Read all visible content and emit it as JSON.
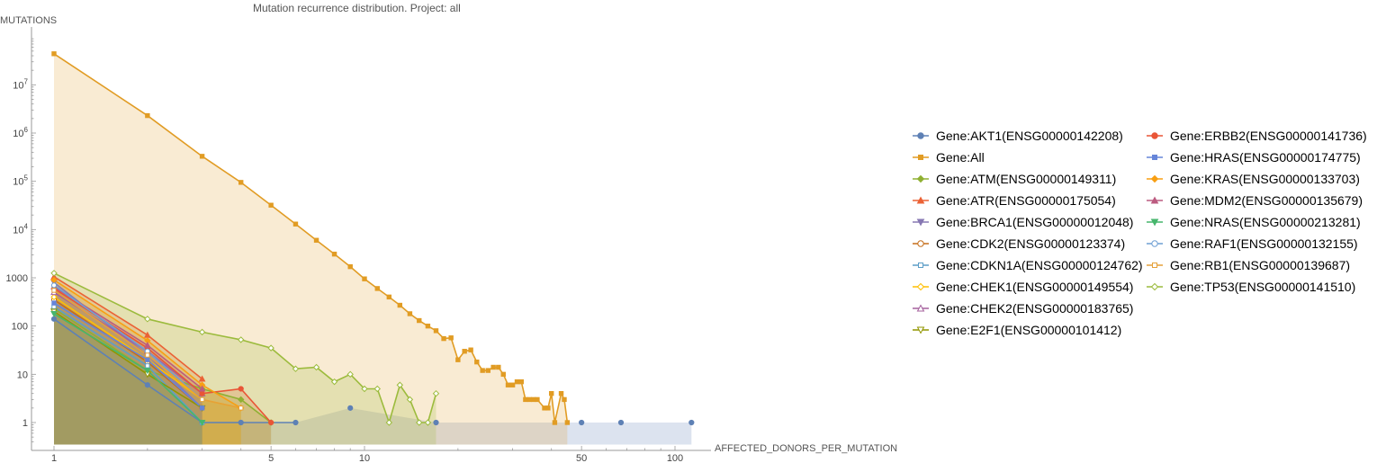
{
  "chart_data": {
    "type": "line",
    "title": "Mutation recurrence distribution. Project: all",
    "xlabel": "AFFECTED_DONORS_PER_MUTATION",
    "ylabel": "MUTATIONS",
    "x_scale": "log",
    "y_scale": "log",
    "xlim": [
      1,
      130
    ],
    "ylim": [
      0.35,
      100000000
    ],
    "x_ticks": [
      {
        "value": 1,
        "label": "1"
      },
      {
        "value": 5,
        "label": "5"
      },
      {
        "value": 10,
        "label": "10"
      },
      {
        "value": 50,
        "label": "50"
      },
      {
        "value": 100,
        "label": "100"
      }
    ],
    "y_ticks": [
      {
        "value": 1,
        "label": "1"
      },
      {
        "value": 10,
        "label": "10"
      },
      {
        "value": 100,
        "label": "100"
      },
      {
        "value": 1000,
        "label": "1000"
      },
      {
        "value": 10000,
        "label": "10",
        "exp": "4"
      },
      {
        "value": 100000,
        "label": "10",
        "exp": "5"
      },
      {
        "value": 1000000,
        "label": "10",
        "exp": "6"
      },
      {
        "value": 10000000,
        "label": "10",
        "exp": "7"
      }
    ],
    "legend_position": "right",
    "series": [
      {
        "name": "Gene:AKT1(ENSG00000142208)",
        "color": "#5e81b5",
        "marker": "circle",
        "filled": false,
        "points": [
          [
            1,
            140
          ],
          [
            2,
            6
          ],
          [
            3,
            1
          ],
          [
            4,
            1
          ],
          [
            6,
            1
          ],
          [
            9,
            2
          ],
          [
            17,
            1
          ],
          [
            50,
            1
          ],
          [
            67,
            1
          ],
          [
            113,
            1
          ]
        ]
      },
      {
        "name": "Gene:All",
        "color": "#e19c24",
        "marker": "square",
        "filled": true,
        "points": [
          [
            1,
            44000000
          ],
          [
            2,
            2300000
          ],
          [
            3,
            330000
          ],
          [
            4,
            95000
          ],
          [
            5,
            32000
          ],
          [
            6,
            13000
          ],
          [
            7,
            6000
          ],
          [
            8,
            3100
          ],
          [
            9,
            1700
          ],
          [
            10,
            950
          ],
          [
            11,
            600
          ],
          [
            12,
            400
          ],
          [
            13,
            270
          ],
          [
            14,
            180
          ],
          [
            15,
            130
          ],
          [
            16,
            100
          ],
          [
            17,
            80
          ],
          [
            18,
            55
          ],
          [
            19,
            57
          ],
          [
            20,
            20
          ],
          [
            21,
            30
          ],
          [
            22,
            32
          ],
          [
            23,
            18
          ],
          [
            24,
            12
          ],
          [
            25,
            12
          ],
          [
            26,
            14
          ],
          [
            27,
            14
          ],
          [
            28,
            10
          ],
          [
            29,
            6
          ],
          [
            30,
            6
          ],
          [
            31,
            7
          ],
          [
            32,
            7
          ],
          [
            33,
            3
          ],
          [
            34,
            3
          ],
          [
            35,
            3
          ],
          [
            36,
            3
          ],
          [
            38,
            2
          ],
          [
            39,
            2
          ],
          [
            40,
            4
          ],
          [
            41,
            1
          ],
          [
            43,
            4
          ],
          [
            44,
            3
          ],
          [
            45,
            1
          ]
        ]
      },
      {
        "name": "Gene:ATM(ENSG00000149311)",
        "color": "#8fb032",
        "marker": "diamond",
        "filled": false,
        "points": [
          [
            1,
            230
          ],
          [
            2,
            12
          ],
          [
            3,
            5
          ],
          [
            4,
            3
          ],
          [
            5,
            1
          ]
        ]
      },
      {
        "name": "Gene:ATR(ENSG00000175054)",
        "color": "#eb6235",
        "marker": "triangle-up",
        "filled": false,
        "points": [
          [
            1,
            1050
          ],
          [
            2,
            65
          ],
          [
            3,
            8
          ]
        ]
      },
      {
        "name": "Gene:BRCA1(ENSG00000012048)",
        "color": "#8778b3",
        "marker": "triangle-down",
        "filled": false,
        "points": [
          [
            1,
            800
          ],
          [
            2,
            25
          ],
          [
            3,
            2
          ]
        ]
      },
      {
        "name": "Gene:CDK2(ENSG00000123374)",
        "color": "#c56e1a",
        "marker": "circle-open",
        "filled": false,
        "points": [
          [
            1,
            350
          ],
          [
            2,
            18
          ],
          [
            3,
            2
          ]
        ]
      },
      {
        "name": "Gene:CDKN1A(ENSG00000124762)",
        "color": "#5d9ec7",
        "marker": "square-open",
        "filled": false,
        "points": [
          [
            1,
            250
          ],
          [
            2,
            15
          ],
          [
            3,
            1
          ]
        ]
      },
      {
        "name": "Gene:CHEK1(ENSG00000149554)",
        "color": "#ffbf00",
        "marker": "diamond-open",
        "filled": false,
        "points": [
          [
            1,
            400
          ],
          [
            2,
            20
          ],
          [
            3,
            3
          ],
          [
            4,
            2
          ]
        ]
      },
      {
        "name": "Gene:CHEK2(ENSG00000183765)",
        "color": "#a5609d",
        "marker": "triangle-up-open",
        "filled": false,
        "points": [
          [
            1,
            500
          ],
          [
            2,
            30
          ],
          [
            3,
            4
          ]
        ]
      },
      {
        "name": "Gene:E2F1(ENSG00000101412)",
        "color": "#929600",
        "marker": "triangle-down-open",
        "filled": false,
        "points": [
          [
            1,
            200
          ],
          [
            2,
            10
          ],
          [
            3,
            2
          ]
        ]
      },
      {
        "name": "Gene:ERBB2(ENSG00000141736)",
        "color": "#e95536",
        "marker": "circle",
        "filled": false,
        "points": [
          [
            1,
            600
          ],
          [
            2,
            35
          ],
          [
            3,
            4
          ],
          [
            4,
            5
          ],
          [
            5,
            1
          ]
        ]
      },
      {
        "name": "Gene:HRAS(ENSG00000174775)",
        "color": "#6685d9",
        "marker": "square",
        "filled": false,
        "points": [
          [
            1,
            300
          ],
          [
            2,
            20
          ],
          [
            3,
            2
          ]
        ]
      },
      {
        "name": "Gene:KRAS(ENSG00000133703)",
        "color": "#f89f13",
        "marker": "diamond",
        "filled": false,
        "points": [
          [
            1,
            900
          ],
          [
            2,
            50
          ],
          [
            3,
            6
          ],
          [
            4,
            2
          ]
        ]
      },
      {
        "name": "Gene:MDM2(ENSG00000135679)",
        "color": "#bc5b80",
        "marker": "triangle-up",
        "filled": false,
        "points": [
          [
            1,
            650
          ],
          [
            2,
            40
          ],
          [
            3,
            5
          ]
        ]
      },
      {
        "name": "Gene:NRAS(ENSG00000213281)",
        "color": "#47b66d",
        "marker": "triangle-down",
        "filled": false,
        "points": [
          [
            1,
            180
          ],
          [
            2,
            12
          ],
          [
            3,
            1
          ]
        ]
      },
      {
        "name": "Gene:RAF1(ENSG00000132155)",
        "color": "#6f9fd4",
        "marker": "circle-open",
        "filled": false,
        "points": [
          [
            1,
            700
          ],
          [
            2,
            30
          ],
          [
            3,
            3
          ]
        ]
      },
      {
        "name": "Gene:RB1(ENSG00000139687)",
        "color": "#e5a13a",
        "marker": "square-open",
        "filled": false,
        "points": [
          [
            1,
            550
          ],
          [
            2,
            25
          ],
          [
            3,
            3
          ],
          [
            4,
            2
          ]
        ]
      },
      {
        "name": "Gene:TP53(ENSG00000141510)",
        "color": "#9cbb3d",
        "marker": "diamond-open",
        "filled": false,
        "points": [
          [
            1,
            1250
          ],
          [
            2,
            140
          ],
          [
            3,
            75
          ],
          [
            4,
            52
          ],
          [
            5,
            35
          ],
          [
            6,
            13
          ],
          [
            7,
            14
          ],
          [
            8,
            7
          ],
          [
            9,
            10
          ],
          [
            10,
            5
          ],
          [
            11,
            5
          ],
          [
            12,
            1
          ],
          [
            13,
            6
          ],
          [
            14,
            3
          ],
          [
            15,
            1
          ],
          [
            16,
            1
          ],
          [
            17,
            4
          ]
        ]
      }
    ]
  }
}
